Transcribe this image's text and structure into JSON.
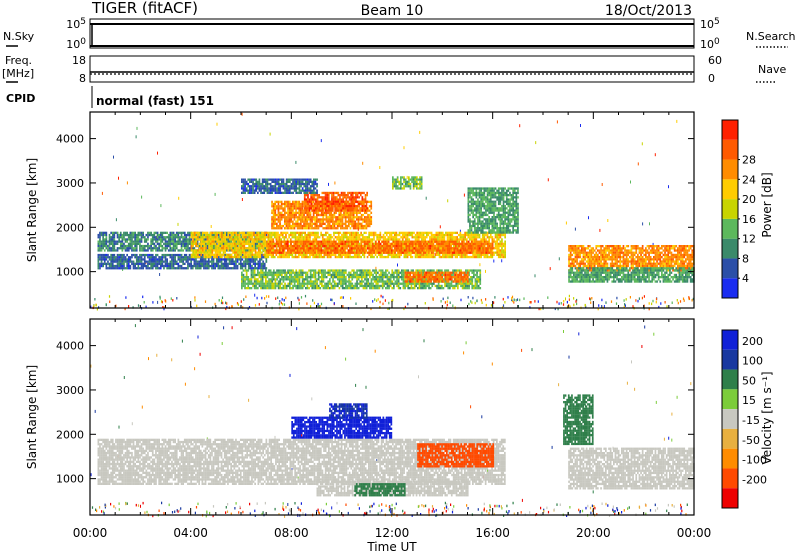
{
  "header": {
    "radar": "TIGER (fitACF)",
    "beam": "Beam 10",
    "date": "18/Oct/2013"
  },
  "status_panels": {
    "nsky": {
      "label": "N.Sky",
      "ticks": [
        "10^5",
        "10^0"
      ]
    },
    "nsearch": {
      "label": "N.Search",
      "ticks": [
        "10^5",
        "10^0"
      ]
    },
    "freq": {
      "label": "Freq.",
      "unit": "[MHz]",
      "ticks": [
        "18",
        "8"
      ]
    },
    "nave": {
      "label": "Nave",
      "ticks": [
        "60",
        "0"
      ]
    },
    "cpid": {
      "label": "CPID",
      "value": "normal (fast) 151"
    }
  },
  "colors": {
    "power_scale": [
      "#1a2cf0",
      "#2b4fa8",
      "#3a8a6a",
      "#5cb85c",
      "#c8d400",
      "#ffcc00",
      "#ff8c00",
      "#ff5a00",
      "#ff2000"
    ],
    "velocity_scale": [
      "#1020d8",
      "#1838a0",
      "#2f7f4a",
      "#7ccc3a",
      "#c8c8c0",
      "#e8b040",
      "#ff8c00",
      "#ff4a00",
      "#ee0000"
    ]
  },
  "chart_data": [
    {
      "type": "heatmap",
      "name": "power",
      "xlabel": "Time UT",
      "ylabel": "Slant Range [km]",
      "x_ticks": [
        "00:00",
        "04:00",
        "08:00",
        "12:00",
        "16:00",
        "20:00",
        "00:00"
      ],
      "xlim": [
        0,
        24
      ],
      "ylim": [
        180,
        4600
      ],
      "y_ticks": [
        1000,
        2000,
        3000,
        4000
      ],
      "colorbar": {
        "label": "Power [dB]",
        "ticks": [
          4,
          8,
          12,
          16,
          20,
          24,
          28
        ],
        "range": [
          0,
          30
        ]
      },
      "regions": [
        {
          "t": [
            0.3,
            7.0
          ],
          "r0": 1500,
          "r1": 1900,
          "v": 8
        },
        {
          "t": [
            0.3,
            7.0
          ],
          "r0": 1100,
          "r1": 1400,
          "v": 6
        },
        {
          "t": [
            4.0,
            16.5
          ],
          "r0": 1350,
          "r1": 1900,
          "v": 18
        },
        {
          "t": [
            7.0,
            16.0
          ],
          "r0": 1450,
          "r1": 1700,
          "v": 24
        },
        {
          "t": [
            7.2,
            11.2
          ],
          "r0": 2000,
          "r1": 2600,
          "v": 22
        },
        {
          "t": [
            8.5,
            11.0
          ],
          "r0": 2400,
          "r1": 2800,
          "v": 25
        },
        {
          "t": [
            6.0,
            15.5
          ],
          "r0": 650,
          "r1": 1050,
          "v": 12
        },
        {
          "t": [
            12.5,
            15.0
          ],
          "r0": 800,
          "r1": 1000,
          "v": 24
        },
        {
          "t": [
            15.0,
            17.0
          ],
          "r0": 1900,
          "r1": 2900,
          "v": 10
        },
        {
          "t": [
            19.0,
            24.0
          ],
          "r0": 1050,
          "r1": 1600,
          "v": 22
        },
        {
          "t": [
            19.0,
            24.0
          ],
          "r0": 800,
          "r1": 1100,
          "v": 10
        },
        {
          "t": [
            6.0,
            9.0
          ],
          "r0": 2800,
          "r1": 3100,
          "v": 6
        },
        {
          "t": [
            12.0,
            13.2
          ],
          "r0": 2900,
          "r1": 3150,
          "v": 12
        }
      ]
    },
    {
      "type": "heatmap",
      "name": "velocity",
      "xlabel": "Time UT",
      "ylabel": "Slant Range [km]",
      "x_ticks": [
        "00:00",
        "04:00",
        "08:00",
        "12:00",
        "16:00",
        "20:00",
        "00:00"
      ],
      "xlim": [
        0,
        24
      ],
      "ylim": [
        180,
        4600
      ],
      "y_ticks": [
        1000,
        2000,
        3000,
        4000
      ],
      "colorbar": {
        "label": "Velocity [m s⁻¹]",
        "ticks": [
          200,
          100,
          50,
          15,
          -15,
          -50,
          -100,
          -200
        ]
      },
      "regions": [
        {
          "t": [
            0.3,
            16.5
          ],
          "r0": 900,
          "r1": 1900,
          "v": 0
        },
        {
          "t": [
            8.0,
            12.0
          ],
          "r0": 1950,
          "r1": 2400,
          "v": 200
        },
        {
          "t": [
            9.5,
            11.0
          ],
          "r0": 2400,
          "r1": 2700,
          "v": 150
        },
        {
          "t": [
            13.0,
            16.0
          ],
          "r0": 1300,
          "r1": 1800,
          "v": -80
        },
        {
          "t": [
            9.0,
            15.0
          ],
          "r0": 650,
          "r1": 950,
          "v": 0
        },
        {
          "t": [
            10.5,
            12.5
          ],
          "r0": 650,
          "r1": 900,
          "v": 40
        },
        {
          "t": [
            19.0,
            24.0
          ],
          "r0": 800,
          "r1": 1700,
          "v": 0
        },
        {
          "t": [
            18.8,
            20.0
          ],
          "r0": 1800,
          "r1": 2900,
          "v": 40
        }
      ]
    }
  ]
}
